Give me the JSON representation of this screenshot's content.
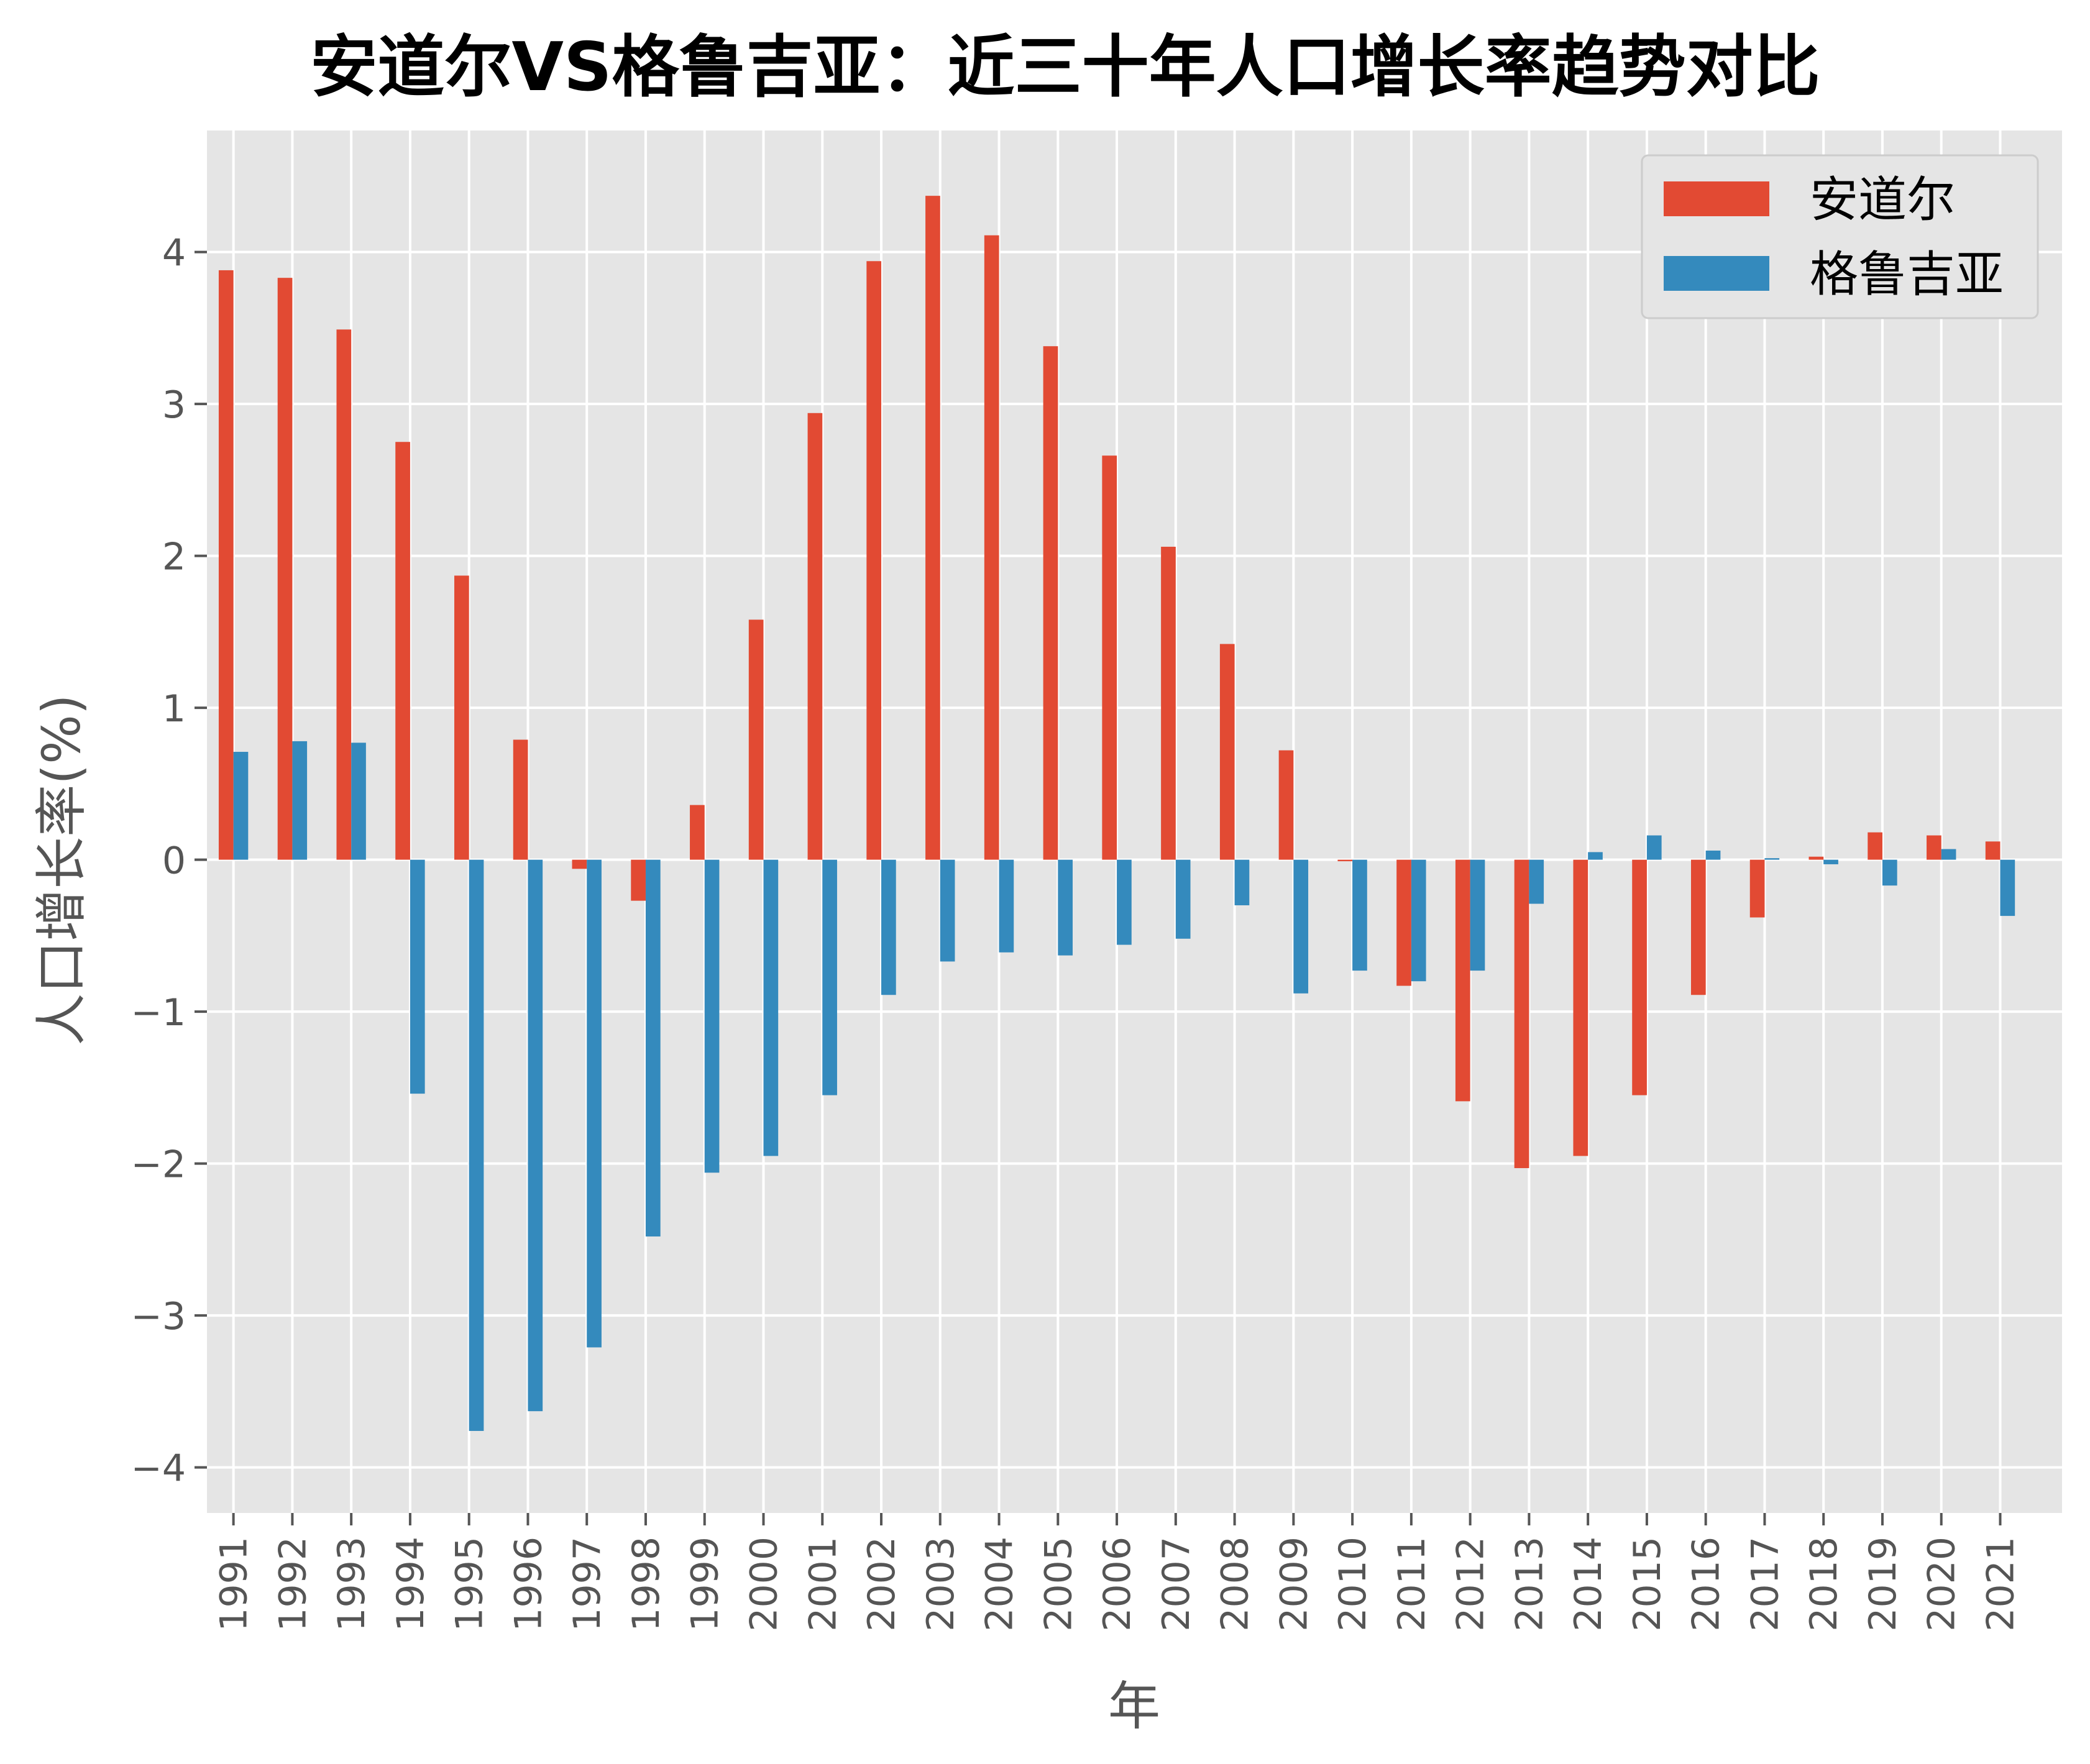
{
  "chart_data": {
    "type": "bar",
    "title": "安道尔VS格鲁吉亚：近三十年人口增长率趋势对比",
    "xlabel": "年",
    "ylabel": "人口增长率(%)",
    "ylim": [
      -4.3,
      4.8
    ],
    "yticks": [
      -4,
      -3,
      -2,
      -1,
      0,
      1,
      2,
      3,
      4
    ],
    "ytick_labels": [
      "−4",
      "−3",
      "−2",
      "−1",
      "0",
      "1",
      "2",
      "3",
      "4"
    ],
    "grid": true,
    "legend_position": "top-right",
    "categories": [
      "1991",
      "1992",
      "1993",
      "1994",
      "1995",
      "1996",
      "1997",
      "1998",
      "1999",
      "2000",
      "2001",
      "2002",
      "2003",
      "2004",
      "2005",
      "2006",
      "2007",
      "2008",
      "2009",
      "2010",
      "2011",
      "2012",
      "2013",
      "2014",
      "2015",
      "2016",
      "2017",
      "2018",
      "2019",
      "2020",
      "2021"
    ],
    "series": [
      {
        "name": "安道尔",
        "color": "#E24A33",
        "values": [
          3.88,
          3.83,
          3.49,
          2.75,
          1.87,
          0.79,
          -0.06,
          -0.27,
          0.36,
          1.58,
          2.94,
          3.94,
          4.37,
          4.11,
          3.38,
          2.66,
          2.06,
          1.42,
          0.72,
          -0.01,
          -0.83,
          -1.59,
          -2.03,
          -1.95,
          -1.55,
          -0.89,
          -0.38,
          0.02,
          0.18,
          0.16,
          0.12
        ]
      },
      {
        "name": "格鲁吉亚",
        "color": "#348ABD",
        "values": [
          0.71,
          0.78,
          0.77,
          -1.54,
          -3.76,
          -3.63,
          -3.21,
          -2.48,
          -2.06,
          -1.95,
          -1.55,
          -0.89,
          -0.67,
          -0.61,
          -0.63,
          -0.56,
          -0.52,
          -0.3,
          -0.88,
          -0.73,
          -0.8,
          -0.73,
          -0.29,
          0.05,
          0.16,
          0.06,
          0.01,
          -0.03,
          -0.17,
          0.07,
          -0.37
        ]
      }
    ]
  }
}
